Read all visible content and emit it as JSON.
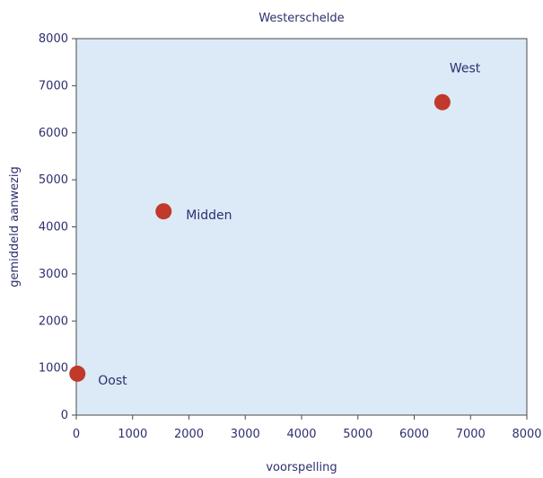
{
  "chart_data": {
    "type": "scatter",
    "title": "Westerschelde",
    "xlabel": "voorspelling",
    "ylabel": "gemiddeld aanwezig",
    "xlim": [
      0,
      8000
    ],
    "ylim": [
      0,
      8000
    ],
    "xticks": [
      0,
      1000,
      2000,
      3000,
      4000,
      5000,
      6000,
      7000,
      8000
    ],
    "yticks": [
      0,
      1000,
      2000,
      3000,
      4000,
      5000,
      6000,
      7000,
      8000
    ],
    "grid": false,
    "points": [
      {
        "label": "West",
        "x": 6500,
        "y": 6650
      },
      {
        "label": "Midden",
        "x": 1550,
        "y": 4330
      },
      {
        "label": "Oost",
        "x": 20,
        "y": 880
      }
    ],
    "colors": {
      "plot_background": "#dce9f7",
      "frame": "#4a4a4a",
      "marker": "#c0392b",
      "text": "#2e2f6e"
    }
  }
}
